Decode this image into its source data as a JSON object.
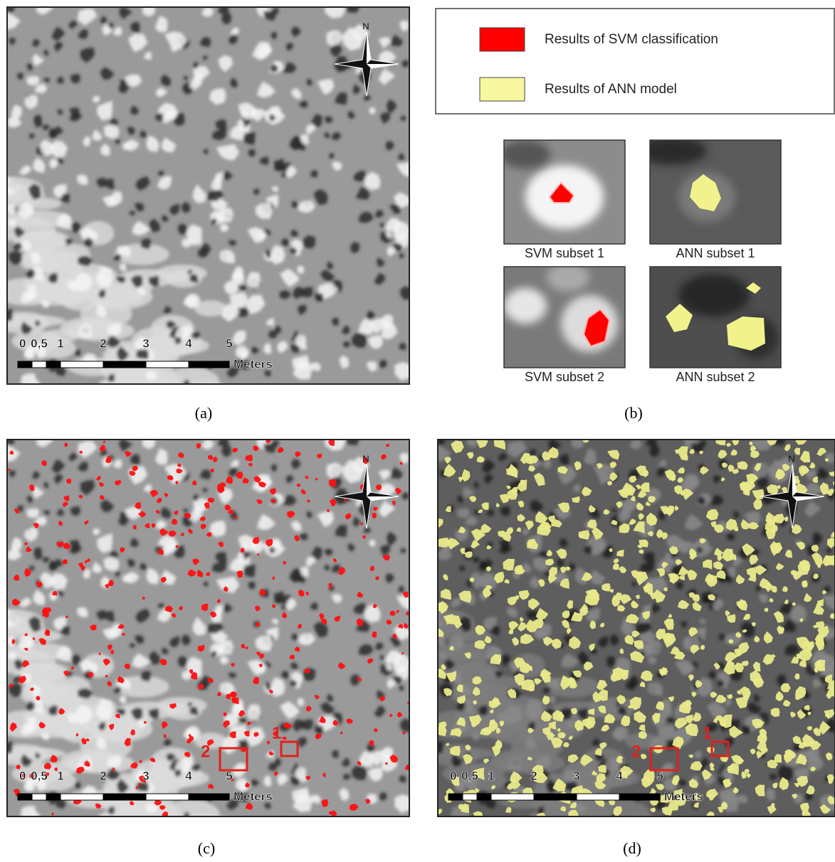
{
  "legend": {
    "items": [
      "Results of SVM classification",
      "Results of ANN model"
    ]
  },
  "subsets": [
    "SVM subset 1",
    "ANN subset 1",
    "SVM subset 2",
    "ANN subset 2"
  ],
  "panel_labels": [
    "(a)",
    "(b)",
    "(c)",
    "(d)"
  ],
  "scale_bar": {
    "ticks": [
      "0",
      "0,5",
      "1",
      "2",
      "3",
      "4",
      "5"
    ],
    "unit": "Meters"
  },
  "north": "N",
  "sample_boxes": [
    "1",
    "2"
  ]
}
